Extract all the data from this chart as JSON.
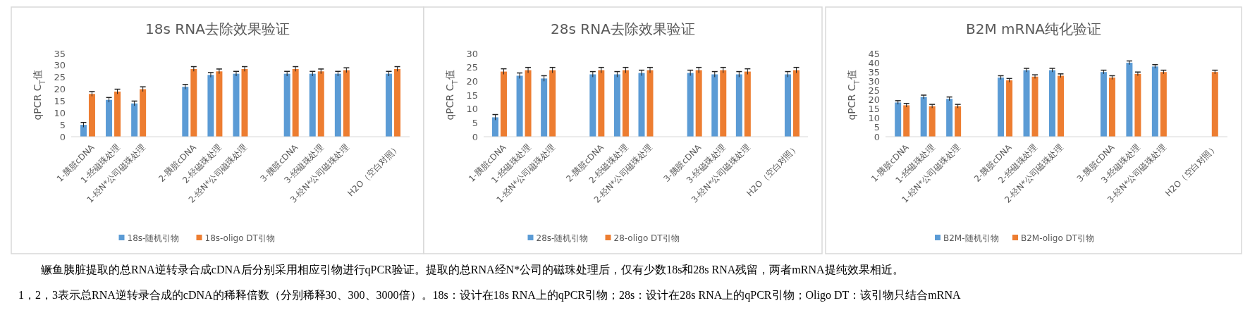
{
  "chart_data": [
    {
      "type": "bar",
      "title": "18s RNA去除效果验证",
      "ylabel": "qPCR C$_{T}$值",
      "categories": [
        "1-胰脏cDNA",
        "1-经磁珠处理",
        "1-经N*公司磁珠处理",
        null,
        "2-胰脏cDNA",
        "2-经磁珠处理",
        "2-经N*公司磁珠处理",
        null,
        "3-胰脏cDNA",
        "3-经磁珠处理",
        "3-经N*公司磁珠处理",
        null,
        "H2O（空白对照）"
      ],
      "ylim": [
        0,
        35
      ],
      "yticks": [
        0,
        5,
        10,
        15,
        20,
        25,
        30,
        35
      ],
      "grid": false,
      "legend": "bottom",
      "series": [
        {
          "name": "18s-随机引物",
          "color": "#5b9bd5",
          "values": [
            5,
            15.5,
            14,
            null,
            21,
            26,
            26.5,
            null,
            26.5,
            26.5,
            26.5,
            null,
            26.5
          ],
          "errors": [
            1,
            1,
            1,
            null,
            1,
            1,
            1,
            null,
            1,
            1,
            1,
            null,
            1
          ]
        },
        {
          "name": "18s-oligo DT引物",
          "color": "#ed7d31",
          "values": [
            18,
            19,
            20,
            null,
            28.5,
            27.5,
            28.5,
            null,
            28.5,
            27.5,
            28,
            null,
            28.5
          ],
          "errors": [
            1,
            1,
            1,
            null,
            1,
            1,
            1,
            null,
            1,
            1,
            1,
            null,
            1
          ]
        }
      ],
      "annotations": [
        "鳜鱼胰脏提取的总RNA逆转录合成cDNA后分别采用相应引物进行qPCR验证。提取的总RNA经N*公司的磁珠处理后，仅有少数18s和28s RNA残留，两者mRNA提纯效果相近。",
        "1，2，3表示总RNA逆转录合成的cDNA的稀释倍数（分别稀释30、300、3000倍）。18s：设计在18s RNA上的qPCR引物；28s：设计在28s RNA上的qPCR引物；Oligo DT：该引物只结合mRNA"
      ]
    },
    {
      "type": "bar",
      "title": "28s RNA去除效果验证",
      "ylabel": "qPCR C$_{T}$值",
      "categories": [
        "1-胰脏cDNA",
        "1-经磁珠处理",
        "1-经N*公司磁珠处理",
        null,
        "2-胰脏cDNA",
        "2-经磁珠处理",
        "2-经N*公司磁珠处理",
        null,
        "3-胰脏cDNA",
        "3-经磁珠处理",
        "3-经N*公司磁珠处理",
        null,
        "H2O（空白对照）"
      ],
      "ylim": [
        0,
        30
      ],
      "yticks": [
        0,
        5,
        10,
        15,
        20,
        25,
        30
      ],
      "grid": false,
      "legend": "bottom",
      "series": [
        {
          "name": "28s-随机引物",
          "color": "#5b9bd5",
          "values": [
            7,
            22,
            21,
            null,
            22.5,
            22.5,
            23,
            null,
            23,
            22.5,
            22.5,
            null,
            22.5
          ],
          "errors": [
            1,
            1,
            1,
            null,
            1,
            1,
            1,
            null,
            1,
            1,
            1,
            null,
            1
          ]
        },
        {
          "name": "28-oligo DT引物",
          "color": "#ed7d31",
          "values": [
            23.5,
            24,
            24,
            null,
            24,
            24,
            24,
            null,
            24,
            24,
            23.5,
            null,
            24
          ],
          "errors": [
            1,
            1,
            1,
            null,
            1,
            1,
            1,
            null,
            1,
            1,
            1,
            null,
            1
          ]
        }
      ]
    },
    {
      "type": "bar",
      "title": "B2M mRNA纯化验证",
      "ylabel": "qPCR C$_{T}$值",
      "categories": [
        "1-胰脏cDNA",
        "1-经磁珠处理",
        "1-经N*公司磁珠处理",
        null,
        "2-胰脏cDNA",
        "2-经磁珠处理",
        "2-经N*公司磁珠处理",
        null,
        "3-胰脏cDNA",
        "3-经磁珠处理",
        "3-经N*公司磁珠处理",
        null,
        "H2O（空白对照）"
      ],
      "ylim": [
        0,
        45
      ],
      "yticks": [
        0,
        5,
        10,
        15,
        20,
        25,
        30,
        35,
        40,
        45
      ],
      "grid": false,
      "legend": "bottom",
      "series": [
        {
          "name": "B2M-随机引物",
          "color": "#5b9bd5",
          "values": [
            18.5,
            21.5,
            20.5,
            null,
            32,
            36,
            36,
            null,
            35,
            40,
            38,
            null,
            null
          ],
          "errors": [
            1,
            1,
            1,
            null,
            1,
            1,
            1,
            null,
            1,
            1,
            1,
            null,
            null
          ]
        },
        {
          "name": "B2M-oligo DT引物",
          "color": "#ed7d31",
          "values": [
            17,
            16.5,
            16.5,
            null,
            30.5,
            32.5,
            33,
            null,
            32,
            34,
            35,
            null,
            35
          ],
          "errors": [
            1,
            1,
            1,
            null,
            1,
            1,
            1,
            null,
            1,
            1,
            1,
            null,
            1
          ]
        }
      ]
    }
  ]
}
